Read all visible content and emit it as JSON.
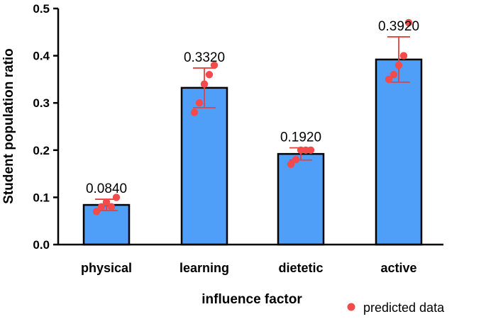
{
  "chart_data": {
    "type": "bar",
    "title": "",
    "xlabel": "influence factor",
    "ylabel": "Student population ratio",
    "ylim": [
      0,
      0.5
    ],
    "yticks": [
      "0.0",
      "0.1",
      "0.2",
      "0.3",
      "0.4",
      "0.5"
    ],
    "categories": [
      "physical",
      "learning",
      "dietetic",
      "active"
    ],
    "values": [
      0.084,
      0.332,
      0.192,
      0.392
    ],
    "value_labels": [
      "0.0840",
      "0.3320",
      "0.1920",
      "0.3920"
    ],
    "error": [
      0.012,
      0.042,
      0.013,
      0.048
    ],
    "points": [
      [
        0.07,
        0.08,
        0.09,
        0.08,
        0.1
      ],
      [
        0.28,
        0.3,
        0.34,
        0.36,
        0.38
      ],
      [
        0.17,
        0.18,
        0.2,
        0.2,
        0.2
      ],
      [
        0.35,
        0.36,
        0.38,
        0.4,
        0.47
      ]
    ],
    "legend": {
      "label": "predicted data",
      "position": "bottom-right"
    },
    "colors": {
      "bar": "#4f9ef8",
      "bar_edge": "#000000",
      "point": "#f24b4b",
      "error": "#e8413c"
    }
  }
}
